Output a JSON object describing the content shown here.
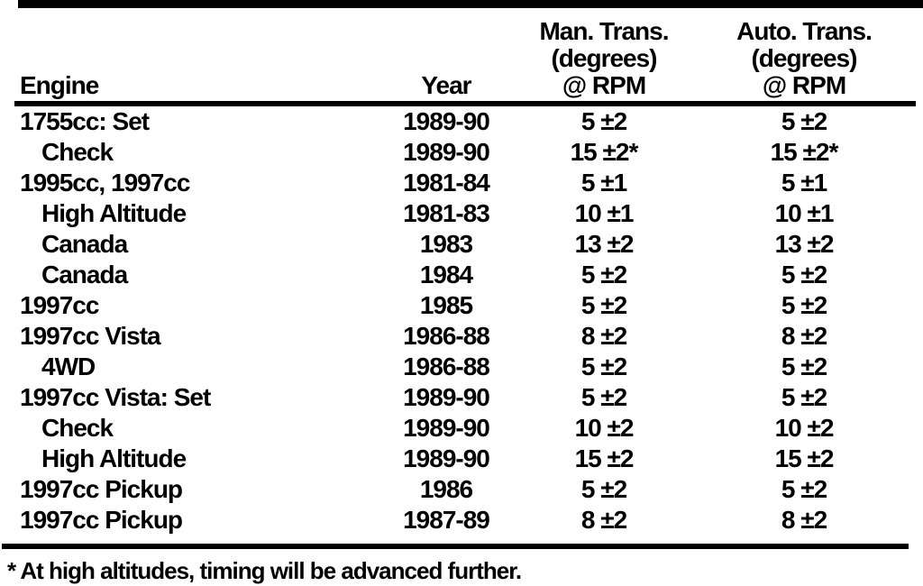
{
  "page": {
    "background_color": "#ffffff",
    "text_color": "#000000"
  },
  "table": {
    "header": {
      "engine": "Engine",
      "year": "Year",
      "man_trans": {
        "line1": "Man. Trans.",
        "line2": "(degrees)",
        "line3": "@ RPM"
      },
      "auto_trans": {
        "line1": "Auto. Trans.",
        "line2": "(degrees)",
        "line3": "@ RPM"
      }
    },
    "rows": [
      {
        "engine": "1755cc: Set",
        "indent": false,
        "year": "1989-90",
        "man_trans": "5 ±2",
        "auto_trans": "5 ±2"
      },
      {
        "engine": "Check",
        "indent": true,
        "year": "1989-90",
        "man_trans": "15 ±2*",
        "auto_trans": "15 ±2*"
      },
      {
        "engine": "1995cc, 1997cc",
        "indent": false,
        "year": "1981-84",
        "man_trans": "5 ±1",
        "auto_trans": "5 ±1"
      },
      {
        "engine": "High Altitude",
        "indent": true,
        "year": "1981-83",
        "man_trans": "10 ±1",
        "auto_trans": "10 ±1"
      },
      {
        "engine": "Canada",
        "indent": true,
        "year": "1983",
        "man_trans": "13 ±2",
        "auto_trans": "13 ±2"
      },
      {
        "engine": "Canada",
        "indent": true,
        "year": "1984",
        "man_trans": "5 ±2",
        "auto_trans": "5 ±2"
      },
      {
        "engine": "1997cc",
        "indent": false,
        "year": "1985",
        "man_trans": "5 ±2",
        "auto_trans": "5 ±2"
      },
      {
        "engine": "1997cc Vista",
        "indent": false,
        "year": "1986-88",
        "man_trans": "8 ±2",
        "auto_trans": "8 ±2"
      },
      {
        "engine": "4WD",
        "indent": true,
        "year": "1986-88",
        "man_trans": "5 ±2",
        "auto_trans": "5 ±2"
      },
      {
        "engine": "1997cc Vista: Set",
        "indent": false,
        "year": "1989-90",
        "man_trans": "5 ±2",
        "auto_trans": "5 ±2"
      },
      {
        "engine": "Check",
        "indent": true,
        "year": "1989-90",
        "man_trans": "10 ±2",
        "auto_trans": "10 ±2"
      },
      {
        "engine": "High Altitude",
        "indent": true,
        "year": "1989-90",
        "man_trans": "15 ±2",
        "auto_trans": "15 ±2"
      },
      {
        "engine": "1997cc Pickup",
        "indent": false,
        "year": "1986",
        "man_trans": "5 ±2",
        "auto_trans": "5 ±2"
      },
      {
        "engine": "1997cc Pickup",
        "indent": false,
        "year": "1987-89",
        "man_trans": "8 ±2",
        "auto_trans": "8 ±2"
      }
    ]
  },
  "footnote": "* At high altitudes, timing will be advanced further."
}
